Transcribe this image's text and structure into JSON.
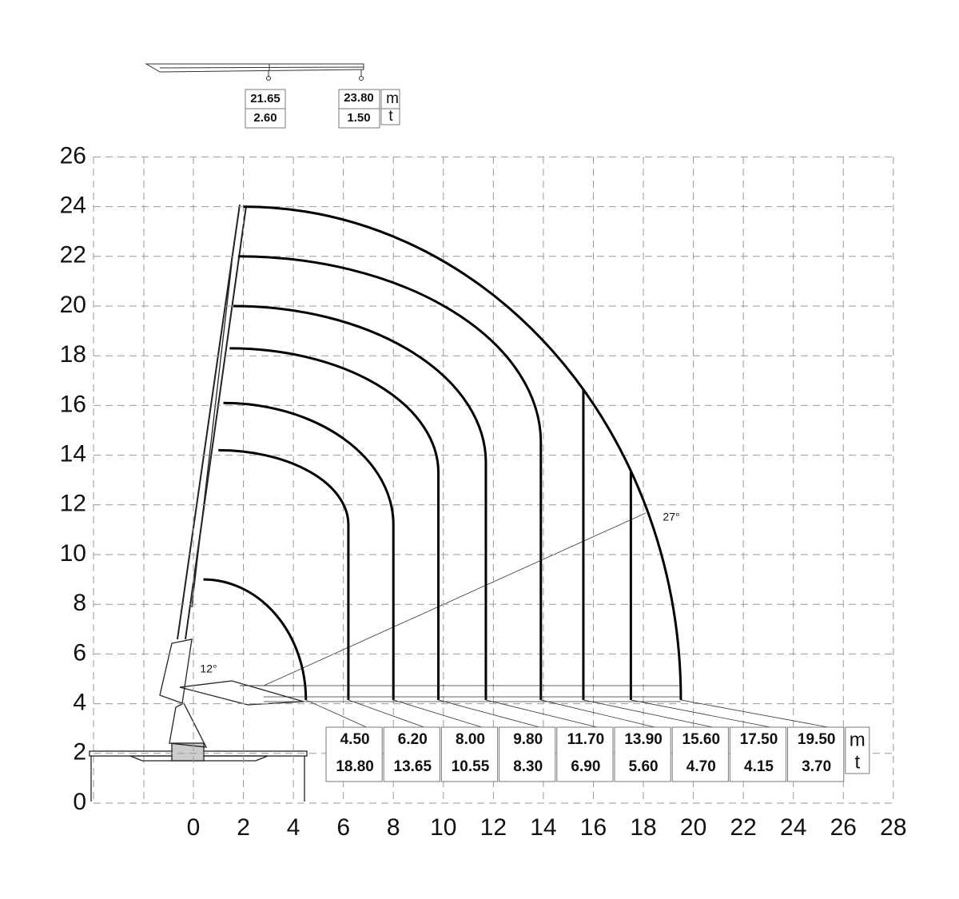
{
  "top_table": {
    "columns": [
      {
        "reach": "21.65",
        "load": "2.60"
      },
      {
        "reach": "23.80",
        "load": "1.50"
      }
    ],
    "units": [
      "m",
      "t"
    ]
  },
  "chart": {
    "yticks": [
      0,
      2,
      4,
      6,
      8,
      10,
      12,
      14,
      16,
      18,
      20,
      22,
      24,
      26
    ],
    "xticks": [
      0,
      2,
      4,
      6,
      8,
      10,
      12,
      14,
      16,
      18,
      20,
      22,
      24,
      26,
      28
    ],
    "angles": [
      "12°",
      "27°"
    ],
    "table": {
      "reach": [
        "4.50",
        "6.20",
        "8.00",
        "9.80",
        "11.70",
        "13.90",
        "15.60",
        "17.50",
        "19.50"
      ],
      "load": [
        "18.80",
        "13.65",
        "10.55",
        "8.30",
        "6.90",
        "5.60",
        "4.70",
        "4.15",
        "3.70"
      ],
      "units": [
        "m",
        "t"
      ]
    }
  }
}
